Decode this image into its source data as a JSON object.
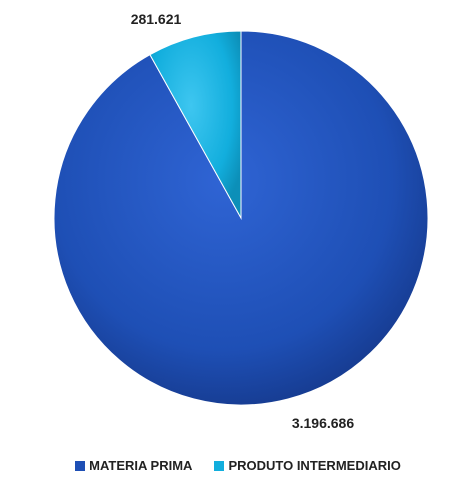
{
  "chart_data": {
    "type": "pie",
    "categories": [
      "MATERIA PRIMA",
      "PRODUTO INTERMEDIARIO"
    ],
    "values": [
      3196686,
      281621
    ],
    "value_labels": [
      "3.196.686",
      "281.621"
    ],
    "colors": [
      "#1E4FB5",
      "#12AEDD"
    ],
    "legend_position": "bottom",
    "start_angle": "12 o'clock",
    "direction": "counterclockwise for second slice"
  }
}
